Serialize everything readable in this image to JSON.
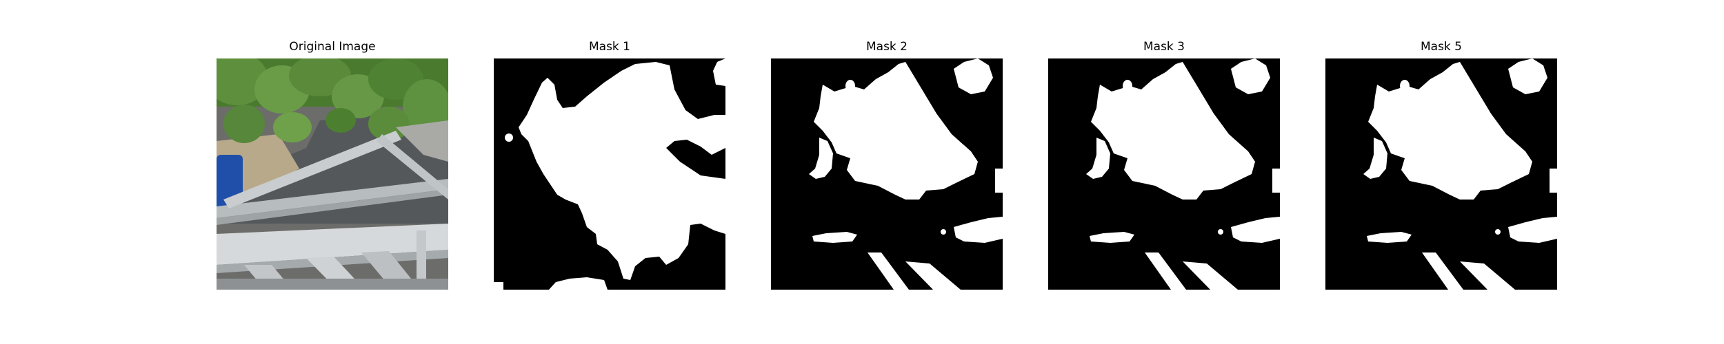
{
  "panels": [
    {
      "title": "Original Image"
    },
    {
      "title": "Mask 1"
    },
    {
      "title": "Mask 2"
    },
    {
      "title": "Mask 3"
    },
    {
      "title": "Mask 5"
    }
  ],
  "colors": {
    "mask_background": "#000000",
    "mask_foreground": "#ffffff",
    "leaf_green": "#5a8a3a",
    "frame_gray": "#c8ccce",
    "floor_gray": "#55585a",
    "blue_object": "#1f4fa8"
  }
}
